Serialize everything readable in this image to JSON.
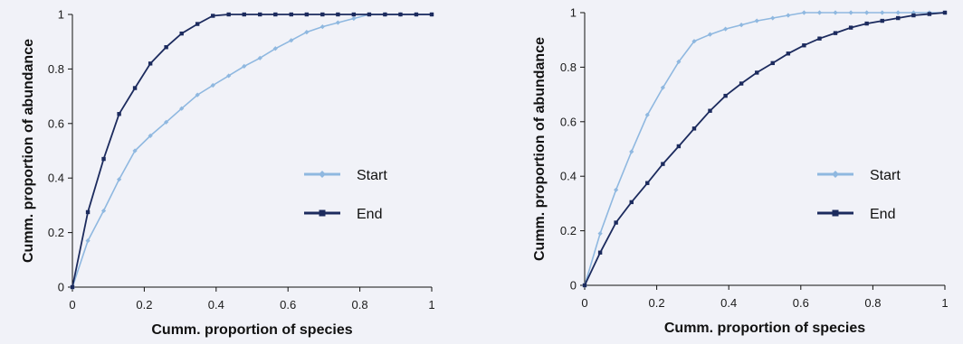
{
  "colors": {
    "start": "#8fb8e0",
    "end": "#1c2b5e",
    "axis": "#111111",
    "background": "#f1f2f8"
  },
  "chart_data": [
    {
      "type": "line",
      "xlabel": "Cumm. proportion of species",
      "ylabel": "Cumm. proportion of abundance",
      "xlim": [
        0,
        1
      ],
      "ylim": [
        0,
        1
      ],
      "x_ticks": [
        "0",
        "0.2",
        "0.4",
        "0.6",
        "0.8",
        "1"
      ],
      "y_ticks": [
        "0",
        "0.2",
        "0.4",
        "0.6",
        "0.8",
        "1"
      ],
      "grid": false,
      "legend_position": "right",
      "series": [
        {
          "name": "Start",
          "marker": "diamond",
          "points": [
            [
              0,
              0
            ],
            [
              0.043,
              0.17
            ],
            [
              0.087,
              0.28
            ],
            [
              0.13,
              0.395
            ],
            [
              0.174,
              0.5
            ],
            [
              0.217,
              0.555
            ],
            [
              0.261,
              0.605
            ],
            [
              0.304,
              0.655
            ],
            [
              0.348,
              0.705
            ],
            [
              0.391,
              0.74
            ],
            [
              0.435,
              0.775
            ],
            [
              0.478,
              0.81
            ],
            [
              0.522,
              0.84
            ],
            [
              0.565,
              0.875
            ],
            [
              0.609,
              0.905
            ],
            [
              0.652,
              0.935
            ],
            [
              0.696,
              0.955
            ],
            [
              0.739,
              0.97
            ],
            [
              0.783,
              0.985
            ],
            [
              0.826,
              1.0
            ],
            [
              0.87,
              1.0
            ],
            [
              0.913,
              1.0
            ],
            [
              0.957,
              1.0
            ],
            [
              1.0,
              1.0
            ]
          ]
        },
        {
          "name": "End",
          "marker": "square",
          "points": [
            [
              0,
              0
            ],
            [
              0.043,
              0.275
            ],
            [
              0.087,
              0.47
            ],
            [
              0.13,
              0.635
            ],
            [
              0.174,
              0.73
            ],
            [
              0.217,
              0.82
            ],
            [
              0.261,
              0.88
            ],
            [
              0.304,
              0.93
            ],
            [
              0.348,
              0.965
            ],
            [
              0.391,
              0.995
            ],
            [
              0.435,
              1.0
            ],
            [
              0.478,
              1.0
            ],
            [
              0.522,
              1.0
            ],
            [
              0.565,
              1.0
            ],
            [
              0.609,
              1.0
            ],
            [
              0.652,
              1.0
            ],
            [
              0.696,
              1.0
            ],
            [
              0.739,
              1.0
            ],
            [
              0.783,
              1.0
            ],
            [
              0.826,
              1.0
            ],
            [
              0.87,
              1.0
            ],
            [
              0.913,
              1.0
            ],
            [
              0.957,
              1.0
            ],
            [
              1.0,
              1.0
            ]
          ]
        }
      ]
    },
    {
      "type": "line",
      "xlabel": "Cumm. proportion of species",
      "ylabel": "Cumm. proportion of abundance",
      "xlim": [
        0,
        1
      ],
      "ylim": [
        0,
        1
      ],
      "x_ticks": [
        "0",
        "0.2",
        "0.4",
        "0.6",
        "0.8",
        "1"
      ],
      "y_ticks": [
        "0",
        "0.2",
        "0.4",
        "0.6",
        "0.8",
        "1"
      ],
      "grid": false,
      "legend_position": "right",
      "series": [
        {
          "name": "Start",
          "marker": "diamond",
          "points": [
            [
              0,
              0
            ],
            [
              0.043,
              0.19
            ],
            [
              0.087,
              0.35
            ],
            [
              0.13,
              0.49
            ],
            [
              0.174,
              0.625
            ],
            [
              0.217,
              0.725
            ],
            [
              0.261,
              0.82
            ],
            [
              0.304,
              0.895
            ],
            [
              0.348,
              0.92
            ],
            [
              0.391,
              0.94
            ],
            [
              0.435,
              0.955
            ],
            [
              0.478,
              0.97
            ],
            [
              0.522,
              0.98
            ],
            [
              0.565,
              0.99
            ],
            [
              0.609,
              1.0
            ],
            [
              0.652,
              1.0
            ],
            [
              0.696,
              1.0
            ],
            [
              0.739,
              1.0
            ],
            [
              0.783,
              1.0
            ],
            [
              0.826,
              1.0
            ],
            [
              0.87,
              1.0
            ],
            [
              0.913,
              1.0
            ],
            [
              0.957,
              1.0
            ],
            [
              1.0,
              1.0
            ]
          ]
        },
        {
          "name": "End",
          "marker": "square",
          "points": [
            [
              0,
              0
            ],
            [
              0.043,
              0.12
            ],
            [
              0.087,
              0.23
            ],
            [
              0.13,
              0.305
            ],
            [
              0.174,
              0.375
            ],
            [
              0.217,
              0.445
            ],
            [
              0.261,
              0.51
            ],
            [
              0.304,
              0.575
            ],
            [
              0.348,
              0.64
            ],
            [
              0.391,
              0.695
            ],
            [
              0.435,
              0.74
            ],
            [
              0.478,
              0.78
            ],
            [
              0.522,
              0.815
            ],
            [
              0.565,
              0.85
            ],
            [
              0.609,
              0.88
            ],
            [
              0.652,
              0.905
            ],
            [
              0.696,
              0.925
            ],
            [
              0.739,
              0.945
            ],
            [
              0.783,
              0.96
            ],
            [
              0.826,
              0.97
            ],
            [
              0.87,
              0.98
            ],
            [
              0.913,
              0.99
            ],
            [
              0.957,
              0.995
            ],
            [
              1.0,
              1.0
            ]
          ]
        }
      ]
    }
  ]
}
